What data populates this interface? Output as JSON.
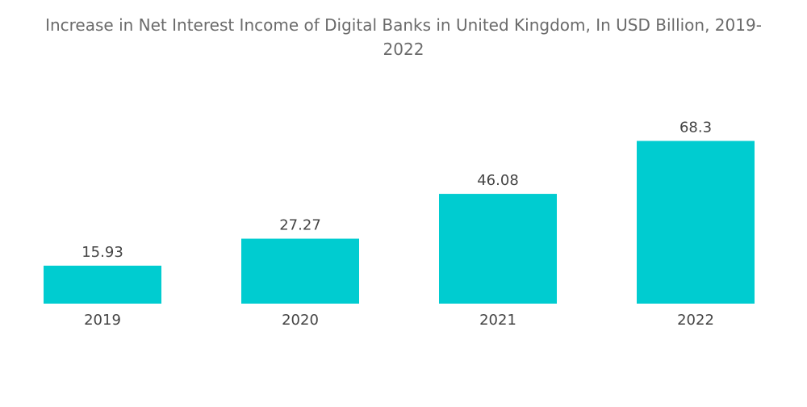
{
  "chart_data": {
    "type": "bar",
    "title": "Increase in Net Interest Income of Digital Banks in United Kingdom, In USD Billion, 2019-2022",
    "categories": [
      "2019",
      "2020",
      "2021",
      "2022"
    ],
    "values": [
      15.93,
      27.27,
      46.08,
      68.3
    ],
    "value_labels": [
      "15.93",
      "27.27",
      "46.08",
      "68.3"
    ],
    "xlabel": "",
    "ylabel": "",
    "ylim": [
      0,
      70
    ],
    "grid": false,
    "legend": "none",
    "bar_color": "#00ccd0"
  }
}
